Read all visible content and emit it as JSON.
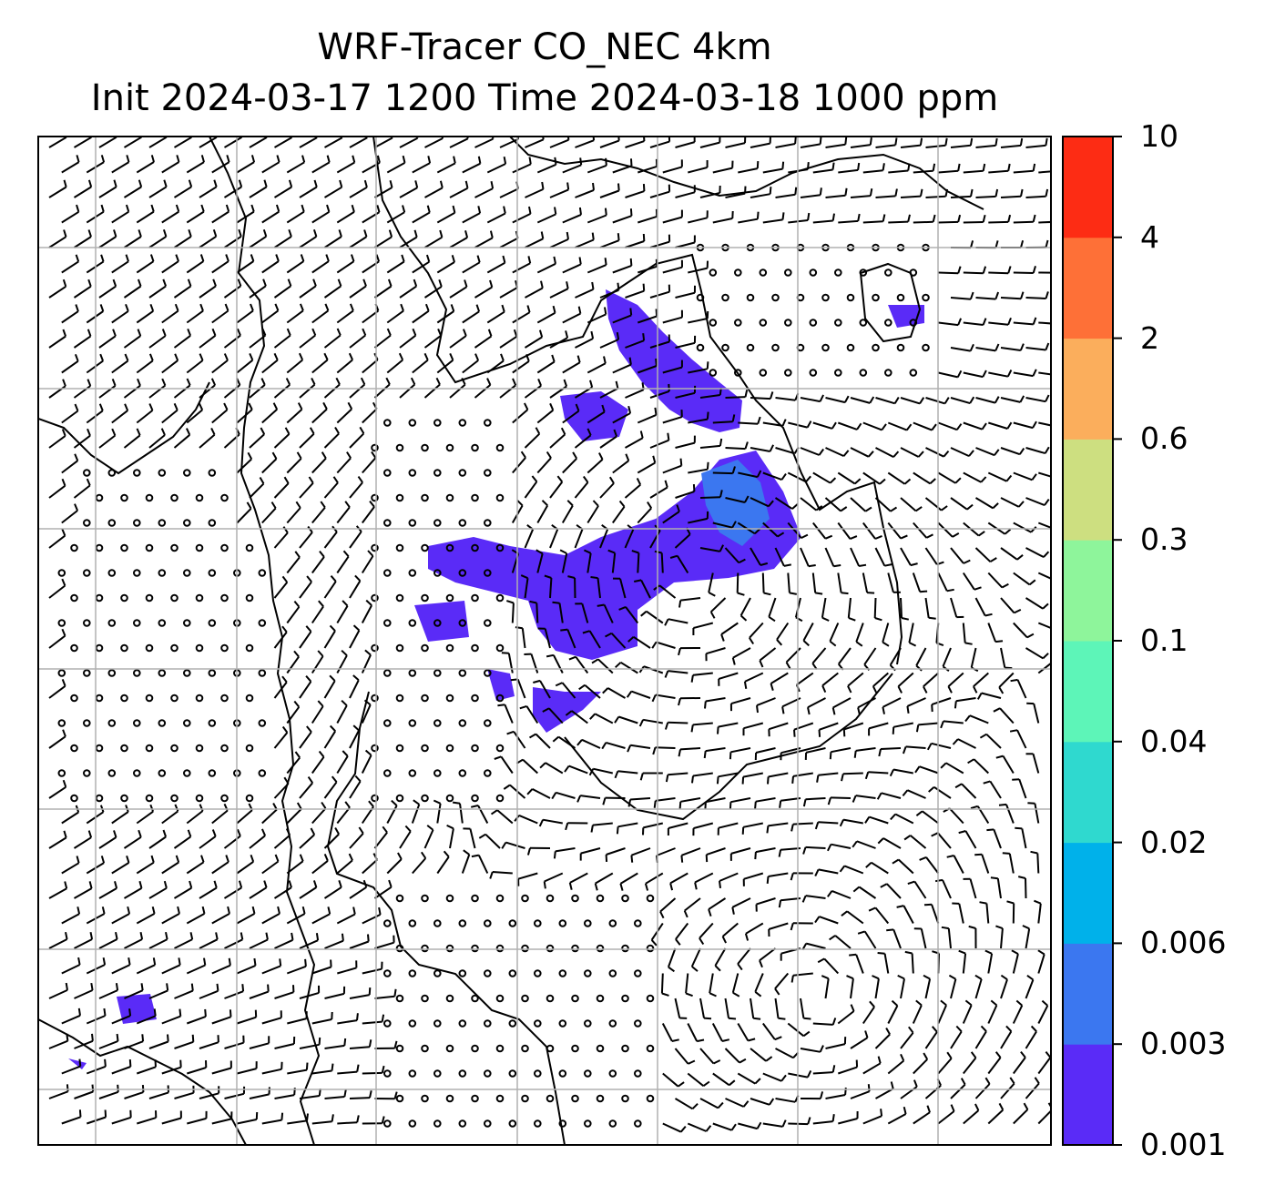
{
  "title_line1": "WRF-Tracer CO_NEC 4km",
  "title_line2": "Init 2024-03-17 1200 Time 2024-03-18 1000 ppm",
  "colorbar": {
    "levels": [
      "0.001",
      "0.003",
      "0.006",
      "0.02",
      "0.04",
      "0.1",
      "0.3",
      "0.6",
      "2",
      "4",
      "10"
    ],
    "colors": [
      "#5a2bf7",
      "#3b77f0",
      "#00b1ea",
      "#2fd9cf",
      "#5df5b8",
      "#8ef59b",
      "#cddf80",
      "#fbae5c",
      "#fe7037",
      "#fd2c14"
    ]
  },
  "map": {
    "tracer_color": "#5a2bf7",
    "tracer_core_color": "#3b77f0",
    "gridline_color": "#b0b0b0",
    "barb_color": "#000000"
  }
}
